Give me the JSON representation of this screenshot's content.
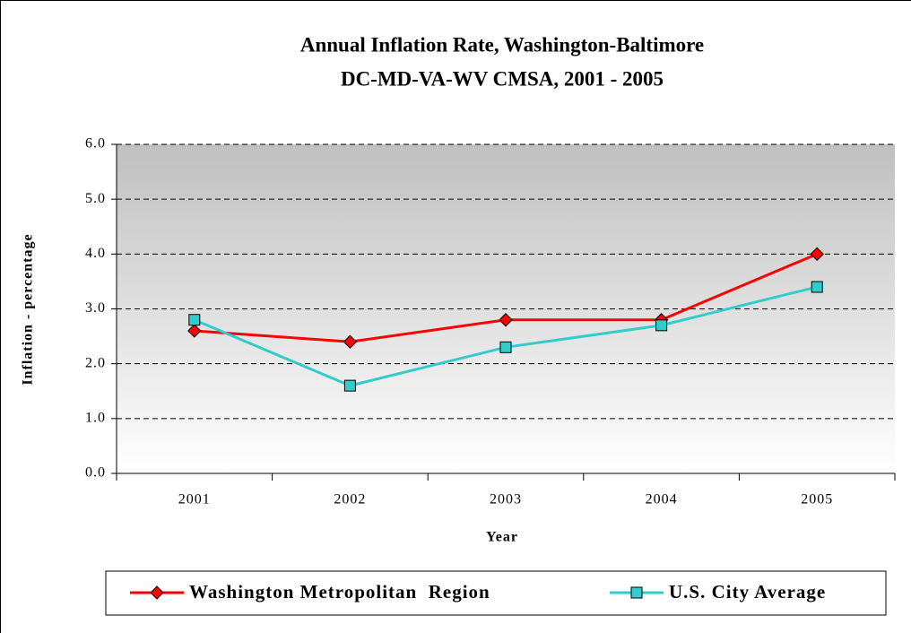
{
  "chart_data": {
    "type": "line",
    "title": [
      "Annual Inflation Rate, Washington-Baltimore",
      "DC-MD-VA-WV CMSA, 2001 - 2005"
    ],
    "x_label": "Year",
    "y_label": "Inflation - percentage",
    "categories": [
      "2001",
      "2002",
      "2003",
      "2004",
      "2005"
    ],
    "series": [
      {
        "name": "Washington Metropolitan  Region",
        "color": "#ff0000",
        "marker": "diamond",
        "values": [
          2.6,
          2.4,
          2.8,
          2.8,
          4.0
        ]
      },
      {
        "name": "U.S. City Average",
        "color": "#33cccc",
        "marker": "square",
        "values": [
          2.8,
          1.6,
          2.3,
          2.7,
          3.4
        ]
      }
    ],
    "ylim": [
      0,
      6
    ],
    "yticks": [
      {
        "value": 0,
        "label": "0.0"
      },
      {
        "value": 1,
        "label": "1.0"
      },
      {
        "value": 2,
        "label": "2.0"
      },
      {
        "value": 3,
        "label": "3.0"
      },
      {
        "value": 4,
        "label": "4.0"
      },
      {
        "value": 5,
        "label": "5.0"
      },
      {
        "value": 6,
        "label": "6.0"
      }
    ],
    "grid": true,
    "legend": "bottom"
  }
}
